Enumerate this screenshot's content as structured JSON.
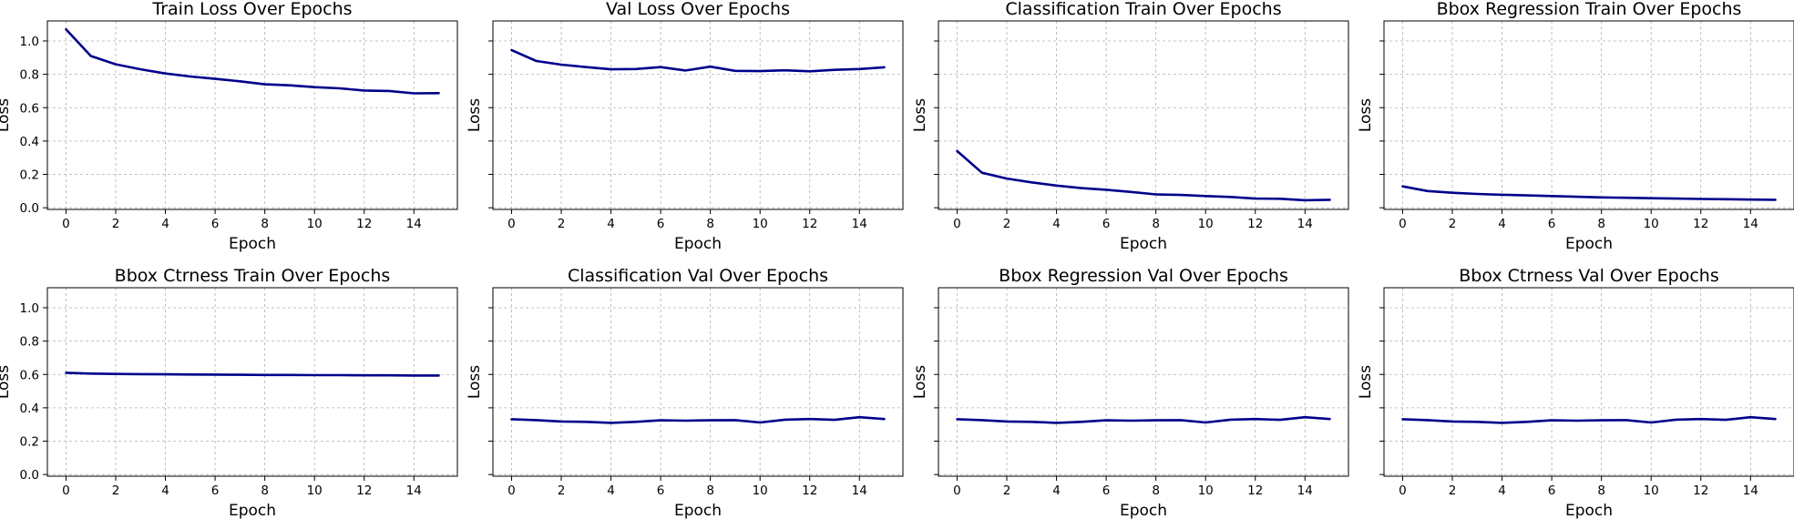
{
  "figure": {
    "line_color": "#00008b",
    "grid": true
  },
  "chart_data": [
    {
      "type": "line",
      "title": "Train Loss Over Epochs",
      "xlabel": "Epoch",
      "ylabel": "Loss",
      "xlim": [
        -0.75,
        15.75
      ],
      "ylim": [
        -0.01,
        1.12
      ],
      "xticks": [
        "0",
        "2",
        "4",
        "6",
        "8",
        "10",
        "12",
        "14"
      ],
      "yticks": [
        "0.0",
        "0.2",
        "0.4",
        "0.6",
        "0.8",
        "1.0"
      ],
      "show_ytick_labels": true,
      "x": [
        0,
        1,
        2,
        3,
        4,
        5,
        6,
        7,
        8,
        9,
        10,
        11,
        12,
        13,
        14,
        15
      ],
      "values": [
        1.07,
        0.91,
        0.86,
        0.83,
        0.805,
        0.787,
        0.773,
        0.758,
        0.74,
        0.734,
        0.723,
        0.716,
        0.703,
        0.7,
        0.686,
        0.687
      ]
    },
    {
      "type": "line",
      "title": "Val Loss Over Epochs",
      "xlabel": "Epoch",
      "ylabel": "Loss",
      "xlim": [
        -0.75,
        15.75
      ],
      "ylim": [
        -0.01,
        1.12
      ],
      "xticks": [
        "0",
        "2",
        "4",
        "6",
        "8",
        "10",
        "12",
        "14"
      ],
      "yticks": [
        "0.0",
        "0.2",
        "0.4",
        "0.6",
        "0.8",
        "1.0"
      ],
      "show_ytick_labels": false,
      "x": [
        0,
        1,
        2,
        3,
        4,
        5,
        6,
        7,
        8,
        9,
        10,
        11,
        12,
        13,
        14,
        15
      ],
      "values": [
        0.945,
        0.88,
        0.858,
        0.843,
        0.83,
        0.832,
        0.843,
        0.823,
        0.846,
        0.821,
        0.819,
        0.824,
        0.818,
        0.827,
        0.832,
        0.842
      ]
    },
    {
      "type": "line",
      "title": "Classification Train Over Epochs",
      "xlabel": "Epoch",
      "ylabel": "Loss",
      "xlim": [
        -0.75,
        15.75
      ],
      "ylim": [
        -0.01,
        1.12
      ],
      "xticks": [
        "0",
        "2",
        "4",
        "6",
        "8",
        "10",
        "12",
        "14"
      ],
      "yticks": [
        "0.0",
        "0.2",
        "0.4",
        "0.6",
        "0.8",
        "1.0"
      ],
      "show_ytick_labels": false,
      "x": [
        0,
        1,
        2,
        3,
        4,
        5,
        6,
        7,
        8,
        9,
        10,
        11,
        12,
        13,
        14,
        15
      ],
      "values": [
        0.34,
        0.21,
        0.175,
        0.152,
        0.133,
        0.118,
        0.108,
        0.095,
        0.08,
        0.077,
        0.07,
        0.065,
        0.055,
        0.054,
        0.045,
        0.048
      ]
    },
    {
      "type": "line",
      "title": "Bbox Regression Train Over Epochs",
      "xlabel": "Epoch",
      "ylabel": "Loss",
      "xlim": [
        -0.75,
        15.75
      ],
      "ylim": [
        -0.01,
        1.12
      ],
      "xticks": [
        "0",
        "2",
        "4",
        "6",
        "8",
        "10",
        "12",
        "14"
      ],
      "yticks": [
        "0.0",
        "0.2",
        "0.4",
        "0.6",
        "0.8",
        "1.0"
      ],
      "show_ytick_labels": false,
      "x": [
        0,
        1,
        2,
        3,
        4,
        5,
        6,
        7,
        8,
        9,
        10,
        11,
        12,
        13,
        14,
        15
      ],
      "values": [
        0.128,
        0.1,
        0.09,
        0.083,
        0.078,
        0.074,
        0.07,
        0.066,
        0.062,
        0.06,
        0.057,
        0.055,
        0.053,
        0.051,
        0.049,
        0.048
      ]
    },
    {
      "type": "line",
      "title": "Bbox Ctrness Train Over Epochs",
      "xlabel": "Epoch",
      "ylabel": "Loss",
      "xlim": [
        -0.75,
        15.75
      ],
      "ylim": [
        -0.01,
        1.12
      ],
      "xticks": [
        "0",
        "2",
        "4",
        "6",
        "8",
        "10",
        "12",
        "14"
      ],
      "yticks": [
        "0.0",
        "0.2",
        "0.4",
        "0.6",
        "0.8",
        "1.0"
      ],
      "show_ytick_labels": true,
      "x": [
        0,
        1,
        2,
        3,
        4,
        5,
        6,
        7,
        8,
        9,
        10,
        11,
        12,
        13,
        14,
        15
      ],
      "values": [
        0.61,
        0.605,
        0.603,
        0.602,
        0.601,
        0.6,
        0.599,
        0.598,
        0.597,
        0.597,
        0.596,
        0.596,
        0.595,
        0.595,
        0.594,
        0.594
      ]
    },
    {
      "type": "line",
      "title": "Classification Val Over Epochs",
      "xlabel": "Epoch",
      "ylabel": "Loss",
      "xlim": [
        -0.75,
        15.75
      ],
      "ylim": [
        -0.01,
        1.12
      ],
      "xticks": [
        "0",
        "2",
        "4",
        "6",
        "8",
        "10",
        "12",
        "14"
      ],
      "yticks": [
        "0.0",
        "0.2",
        "0.4",
        "0.6",
        "0.8",
        "1.0"
      ],
      "show_ytick_labels": false,
      "x": [
        0,
        1,
        2,
        3,
        4,
        5,
        6,
        7,
        8,
        9,
        10,
        11,
        12,
        13,
        14,
        15
      ],
      "values": [
        0.332,
        0.326,
        0.318,
        0.316,
        0.31,
        0.316,
        0.325,
        0.323,
        0.325,
        0.326,
        0.312,
        0.329,
        0.333,
        0.328,
        0.344,
        0.333
      ]
    },
    {
      "type": "line",
      "title": "Bbox Regression Val Over Epochs",
      "xlabel": "Epoch",
      "ylabel": "Loss",
      "xlim": [
        -0.75,
        15.75
      ],
      "ylim": [
        -0.01,
        1.12
      ],
      "xticks": [
        "0",
        "2",
        "4",
        "6",
        "8",
        "10",
        "12",
        "14"
      ],
      "yticks": [
        "0.0",
        "0.2",
        "0.4",
        "0.6",
        "0.8",
        "1.0"
      ],
      "show_ytick_labels": false,
      "x": [
        0,
        1,
        2,
        3,
        4,
        5,
        6,
        7,
        8,
        9,
        10,
        11,
        12,
        13,
        14,
        15
      ],
      "values": [
        0.332,
        0.326,
        0.318,
        0.316,
        0.31,
        0.316,
        0.325,
        0.323,
        0.325,
        0.326,
        0.312,
        0.329,
        0.333,
        0.328,
        0.344,
        0.333
      ]
    },
    {
      "type": "line",
      "title": "Bbox Ctrness Val Over Epochs",
      "xlabel": "Epoch",
      "ylabel": "Loss",
      "xlim": [
        -0.75,
        15.75
      ],
      "ylim": [
        -0.01,
        1.12
      ],
      "xticks": [
        "0",
        "2",
        "4",
        "6",
        "8",
        "10",
        "12",
        "14"
      ],
      "yticks": [
        "0.0",
        "0.2",
        "0.4",
        "0.6",
        "0.8",
        "1.0"
      ],
      "show_ytick_labels": false,
      "x": [
        0,
        1,
        2,
        3,
        4,
        5,
        6,
        7,
        8,
        9,
        10,
        11,
        12,
        13,
        14,
        15
      ],
      "values": [
        0.332,
        0.326,
        0.318,
        0.316,
        0.31,
        0.316,
        0.325,
        0.323,
        0.325,
        0.326,
        0.312,
        0.329,
        0.333,
        0.328,
        0.344,
        0.333
      ]
    }
  ]
}
